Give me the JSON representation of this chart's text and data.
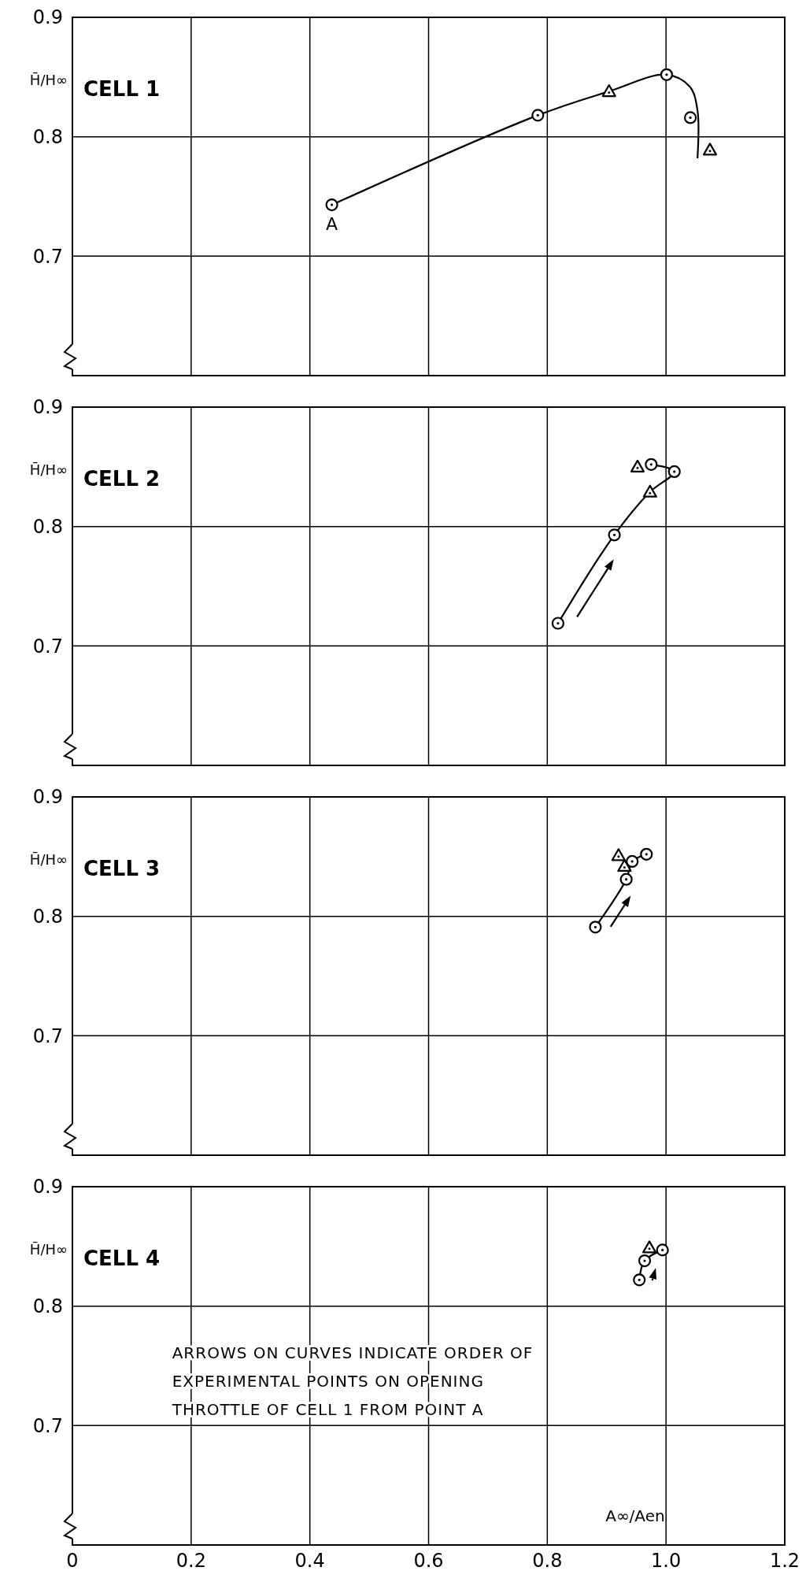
{
  "chart_data": [
    {
      "type": "scatter",
      "title": "CELL 1",
      "ylabel": "H̄/H∞",
      "xlim": [
        0,
        1.2
      ],
      "ylim": [
        0.6,
        0.9
      ],
      "xticks": [
        0,
        0.2,
        0.4,
        0.6,
        0.8,
        1,
        1.2
      ],
      "yticks": [
        0.7,
        0.8,
        0.9
      ],
      "grid": true,
      "tick_labels": "y",
      "series": [
        {
          "type": "line",
          "color": "#000000",
          "marker": "none",
          "x": [
            0.437,
            0.784,
            0.904,
            1.0,
            1.04,
            1.053,
            1.053
          ],
          "values": [
            0.743,
            0.818,
            0.838,
            0.852,
            0.842,
            0.822,
            0.782
          ]
        },
        {
          "color": "#000000",
          "marker": "circle",
          "x": [
            0.437,
            0.784,
            1.001,
            1.041
          ],
          "values": [
            0.743,
            0.818,
            0.852,
            0.816
          ]
        },
        {
          "color": "#000000",
          "marker": "triangle",
          "x": [
            0.904,
            1.074
          ],
          "values": [
            0.838,
            0.789
          ]
        }
      ],
      "annotations": [
        {
          "text": "A",
          "x": 0.437,
          "y": 0.743
        }
      ]
    },
    {
      "type": "scatter",
      "title": "CELL 2",
      "ylabel": "H̄/H∞",
      "xlim": [
        0,
        1.2
      ],
      "ylim": [
        0.6,
        0.9
      ],
      "xticks": [
        0,
        0.2,
        0.4,
        0.6,
        0.8,
        1,
        1.2
      ],
      "yticks": [
        0.7,
        0.8,
        0.9
      ],
      "grid": true,
      "tick_labels": "y",
      "series": [
        {
          "type": "line",
          "color": "#000000",
          "marker": "none",
          "x": [
            0.818,
            0.913,
            0.973,
            1.014,
            0.975
          ],
          "values": [
            0.719,
            0.793,
            0.829,
            0.846,
            0.852
          ]
        },
        {
          "color": "#000000",
          "marker": "circle",
          "x": [
            0.818,
            0.913,
            1.014,
            0.975
          ],
          "values": [
            0.719,
            0.793,
            0.846,
            0.852
          ]
        },
        {
          "color": "#000000",
          "marker": "triangle",
          "x": [
            0.973,
            0.952
          ],
          "values": [
            0.829,
            0.85
          ]
        }
      ]
    },
    {
      "type": "scatter",
      "title": "CELL 3",
      "ylabel": "H̄/H∞",
      "xlim": [
        0,
        1.2
      ],
      "ylim": [
        0.6,
        0.9
      ],
      "xticks": [
        0,
        0.2,
        0.4,
        0.6,
        0.8,
        1,
        1.2
      ],
      "yticks": [
        0.7,
        0.8,
        0.9
      ],
      "grid": true,
      "tick_labels": "y",
      "series": [
        {
          "type": "line",
          "color": "#000000",
          "marker": "none",
          "x": [
            0.881,
            0.933,
            0.943,
            0.967
          ],
          "values": [
            0.791,
            0.831,
            0.846,
            0.852
          ]
        },
        {
          "color": "#000000",
          "marker": "circle",
          "x": [
            0.881,
            0.933,
            0.943,
            0.967
          ],
          "values": [
            0.791,
            0.831,
            0.846,
            0.852
          ]
        },
        {
          "color": "#000000",
          "marker": "triangle",
          "x": [
            0.92,
            0.93
          ],
          "values": [
            0.851,
            0.842
          ]
        }
      ]
    },
    {
      "type": "scatter",
      "title": "CELL 4",
      "ylabel": "H̄/H∞",
      "xlabel": "A∞/Aen",
      "xlim": [
        0,
        1.2
      ],
      "ylim": [
        0.6,
        0.9
      ],
      "xticks": [
        0,
        0.2,
        0.4,
        0.6,
        0.8,
        {
          "value": 1,
          "label": "1.0"
        },
        1.2
      ],
      "yticks": [
        0.7,
        0.8,
        0.9
      ],
      "grid": true,
      "series": [
        {
          "type": "line",
          "color": "#000000",
          "marker": "none",
          "x": [
            0.955,
            0.964,
            0.994
          ],
          "values": [
            0.822,
            0.838,
            0.847
          ]
        },
        {
          "color": "#000000",
          "marker": "circle",
          "x": [
            0.955,
            0.964,
            0.994
          ],
          "values": [
            0.822,
            0.838,
            0.847
          ]
        },
        {
          "color": "#000000",
          "marker": "triangle",
          "x": [
            0.972
          ],
          "values": [
            0.849
          ]
        }
      ],
      "annotations": [
        "ARROWS ON CURVES INDICATE ORDER OF EXPERIMENTAL POINTS ON OPENING THROTTLE OF CELL 1 FROM POINT A"
      ]
    }
  ]
}
